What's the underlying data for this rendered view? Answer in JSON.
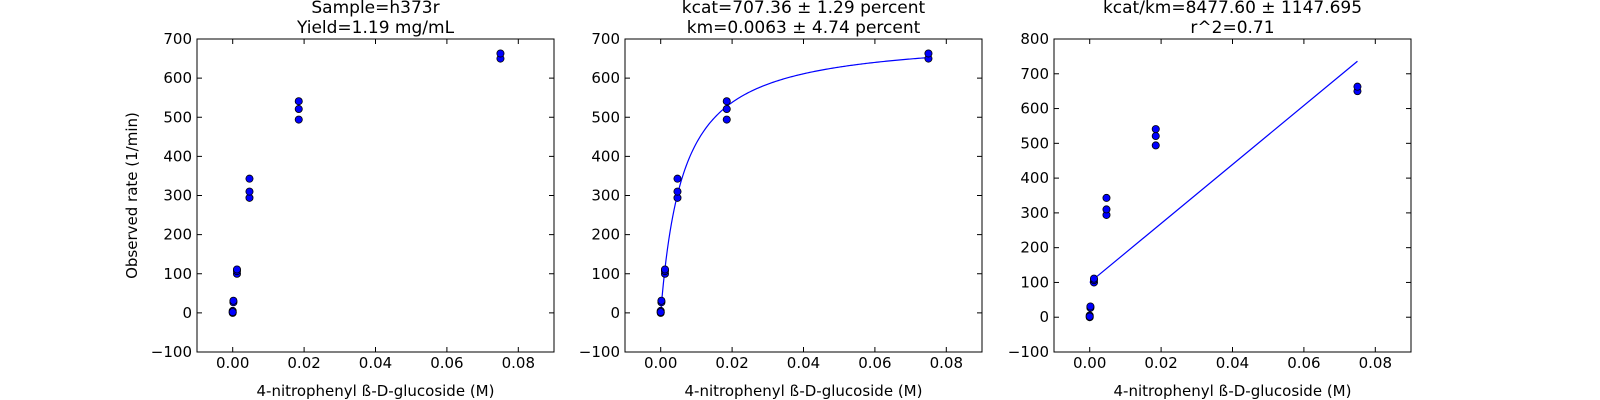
{
  "chart_data": [
    {
      "type": "scatter",
      "title_lines": [
        "Sample=h373r",
        "Yield=1.19 mg/mL"
      ],
      "xlabel": "4-nitrophenyl ß-D-glucoside (M)",
      "ylabel": "Observed rate (1/min)",
      "xlim": [
        -0.01,
        0.09
      ],
      "ylim": [
        -100,
        700
      ],
      "xticks": [
        0.0,
        0.02,
        0.04,
        0.06,
        0.08
      ],
      "xtick_labels": [
        "0.00",
        "0.02",
        "0.04",
        "0.06",
        "0.08"
      ],
      "yticks": [
        -100,
        0,
        100,
        200,
        300,
        400,
        500,
        600,
        700
      ],
      "ytick_labels": [
        "−100",
        "0",
        "100",
        "200",
        "300",
        "400",
        "500",
        "600",
        "700"
      ],
      "points": [
        {
          "x": 0.0,
          "y": 0
        },
        {
          "x": 0.0,
          "y": 5
        },
        {
          "x": 0.0,
          "y": 2
        },
        {
          "x": 0.0002,
          "y": 27
        },
        {
          "x": 0.0002,
          "y": 31
        },
        {
          "x": 0.0012,
          "y": 100
        },
        {
          "x": 0.0012,
          "y": 107
        },
        {
          "x": 0.0012,
          "y": 111
        },
        {
          "x": 0.0047,
          "y": 294
        },
        {
          "x": 0.0047,
          "y": 310
        },
        {
          "x": 0.0047,
          "y": 343
        },
        {
          "x": 0.0185,
          "y": 494
        },
        {
          "x": 0.0185,
          "y": 521
        },
        {
          "x": 0.0185,
          "y": 541
        },
        {
          "x": 0.075,
          "y": 650
        },
        {
          "x": 0.075,
          "y": 663
        }
      ]
    },
    {
      "type": "scatter",
      "title_lines": [
        "kcat=707.36 ± 1.29 percent",
        "km=0.0063 ± 4.74 percent"
      ],
      "xlabel": "4-nitrophenyl ß-D-glucoside (M)",
      "ylabel": "",
      "xlim": [
        -0.01,
        0.09
      ],
      "ylim": [
        -100,
        700
      ],
      "xticks": [
        0.0,
        0.02,
        0.04,
        0.06,
        0.08
      ],
      "xtick_labels": [
        "0.00",
        "0.02",
        "0.04",
        "0.06",
        "0.08"
      ],
      "yticks": [
        -100,
        0,
        100,
        200,
        300,
        400,
        500,
        600,
        700
      ],
      "ytick_labels": [
        "−100",
        "0",
        "100",
        "200",
        "300",
        "400",
        "500",
        "600",
        "700"
      ],
      "points": [
        {
          "x": 0.0,
          "y": 0
        },
        {
          "x": 0.0,
          "y": 5
        },
        {
          "x": 0.0,
          "y": 2
        },
        {
          "x": 0.0002,
          "y": 27
        },
        {
          "x": 0.0002,
          "y": 31
        },
        {
          "x": 0.0012,
          "y": 100
        },
        {
          "x": 0.0012,
          "y": 107
        },
        {
          "x": 0.0012,
          "y": 111
        },
        {
          "x": 0.0047,
          "y": 294
        },
        {
          "x": 0.0047,
          "y": 310
        },
        {
          "x": 0.0047,
          "y": 343
        },
        {
          "x": 0.0185,
          "y": 494
        },
        {
          "x": 0.0185,
          "y": 521
        },
        {
          "x": 0.0185,
          "y": 541
        },
        {
          "x": 0.075,
          "y": 650
        },
        {
          "x": 0.075,
          "y": 663
        }
      ],
      "fit": {
        "type": "michaelis-menten",
        "vmax": 707.36,
        "km": 0.0063,
        "x_range": [
          0.0,
          0.075
        ],
        "color": "#0000ff"
      }
    },
    {
      "type": "scatter",
      "title_lines": [
        "kcat/km=8477.60 ± 1147.695",
        "r^2=0.71"
      ],
      "xlabel": "4-nitrophenyl ß-D-glucoside (M)",
      "ylabel": "",
      "xlim": [
        -0.01,
        0.09
      ],
      "ylim": [
        -100,
        800
      ],
      "xticks": [
        0.0,
        0.02,
        0.04,
        0.06,
        0.08
      ],
      "xtick_labels": [
        "0.00",
        "0.02",
        "0.04",
        "0.06",
        "0.08"
      ],
      "yticks": [
        -100,
        0,
        100,
        200,
        300,
        400,
        500,
        600,
        700,
        800
      ],
      "ytick_labels": [
        "−100",
        "0",
        "100",
        "200",
        "300",
        "400",
        "500",
        "600",
        "700",
        "800"
      ],
      "points": [
        {
          "x": 0.0,
          "y": 0
        },
        {
          "x": 0.0,
          "y": 5
        },
        {
          "x": 0.0,
          "y": 2
        },
        {
          "x": 0.0002,
          "y": 27
        },
        {
          "x": 0.0002,
          "y": 31
        },
        {
          "x": 0.0012,
          "y": 100
        },
        {
          "x": 0.0012,
          "y": 107
        },
        {
          "x": 0.0012,
          "y": 111
        },
        {
          "x": 0.0047,
          "y": 294
        },
        {
          "x": 0.0047,
          "y": 310
        },
        {
          "x": 0.0047,
          "y": 343
        },
        {
          "x": 0.0185,
          "y": 494
        },
        {
          "x": 0.0185,
          "y": 521
        },
        {
          "x": 0.0185,
          "y": 541
        },
        {
          "x": 0.075,
          "y": 650
        },
        {
          "x": 0.075,
          "y": 663
        }
      ],
      "fit": {
        "type": "line",
        "x": [
          0.0,
          0.075
        ],
        "y": [
          100,
          736
        ],
        "color": "#0000ff"
      }
    }
  ],
  "style": {
    "point_color": "#0000ff",
    "point_edge": "#000000",
    "axis_color": "#000000",
    "grid": false
  }
}
